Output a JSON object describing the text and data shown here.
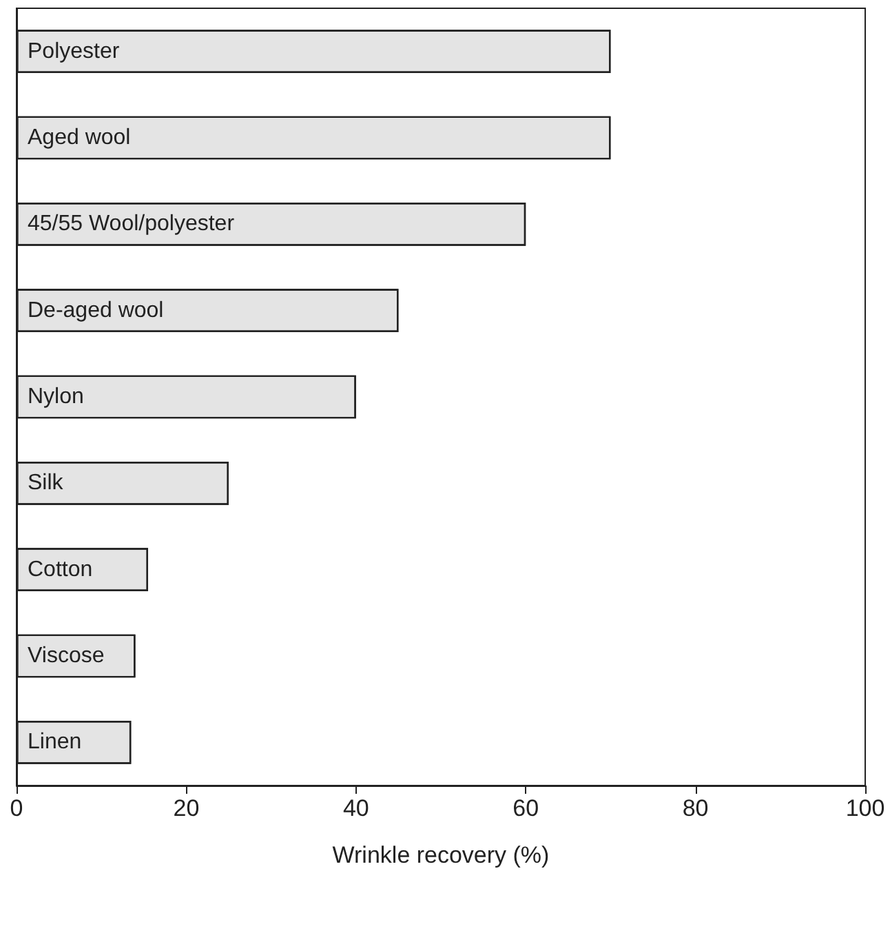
{
  "chart_data": {
    "type": "bar",
    "orientation": "horizontal",
    "xlabel": "Wrinkle recovery (%)",
    "categories": [
      "Polyester",
      "Aged wool",
      "45/55 Wool/polyester",
      "De-aged wool",
      "Nylon",
      "Silk",
      "Cotton",
      "Viscose",
      "Linen"
    ],
    "values": [
      70,
      70,
      60,
      45,
      40,
      25,
      15.5,
      14,
      13.5
    ],
    "color": "#e4e4e4",
    "xlim": [
      0,
      100
    ],
    "xticks": [
      0,
      20,
      40,
      60,
      80,
      100
    ],
    "grid": false
  }
}
